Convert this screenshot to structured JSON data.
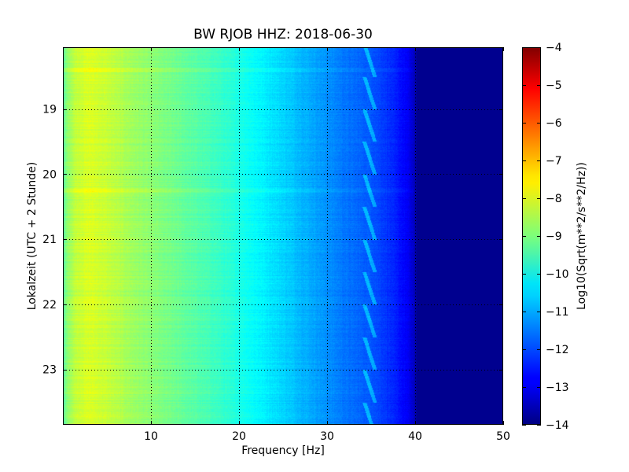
{
  "chart_data": {
    "type": "heatmap",
    "title": "BW RJOB HHZ: 2018-06-30",
    "xlabel": "Frequency [Hz]",
    "ylabel": "Lokalzeit (UTC + 2 Stunde)",
    "colorbar_label": "Log10(Sqrt(m**2/s**2/Hz))",
    "xlim": [
      0,
      50
    ],
    "ylim": [
      18.05,
      23.85
    ],
    "y_inverted": true,
    "x_ticks": [
      10,
      20,
      30,
      40,
      50
    ],
    "x_tick_labels": [
      "10",
      "20",
      "30",
      "40",
      "50"
    ],
    "y_ticks": [
      19,
      20,
      21,
      22,
      23
    ],
    "y_tick_labels": [
      "19",
      "20",
      "21",
      "22",
      "23"
    ],
    "colorbar_range": [
      -14,
      -4
    ],
    "colorbar_ticks": [
      -4,
      -5,
      -6,
      -7,
      -8,
      -9,
      -10,
      -11,
      -12,
      -13,
      -14
    ],
    "colorbar_tick_labels": [
      "−4",
      "−5",
      "−6",
      "−7",
      "−8",
      "−9",
      "−10",
      "−11",
      "−12",
      "−13",
      "−14"
    ],
    "colormap": "jet",
    "grid": true,
    "spectrum_profile": {
      "frequency_hz": [
        0,
        0.5,
        1.5,
        3,
        5,
        8,
        11,
        14,
        17,
        20,
        23,
        26,
        29,
        32,
        35,
        37,
        39,
        39.8,
        40.2,
        50
      ],
      "log10_amplitude": [
        -9.4,
        -8.8,
        -8.3,
        -8.1,
        -8.3,
        -8.7,
        -9.0,
        -9.3,
        -9.6,
        -10.0,
        -10.4,
        -10.8,
        -11.2,
        -11.6,
        -11.9,
        -12.3,
        -12.8,
        -13.3,
        -13.85,
        -13.85
      ]
    },
    "tone_hz_range": [
      34.2,
      35.4
    ],
    "bright_row_hours": [
      18.4,
      20.25
    ]
  }
}
